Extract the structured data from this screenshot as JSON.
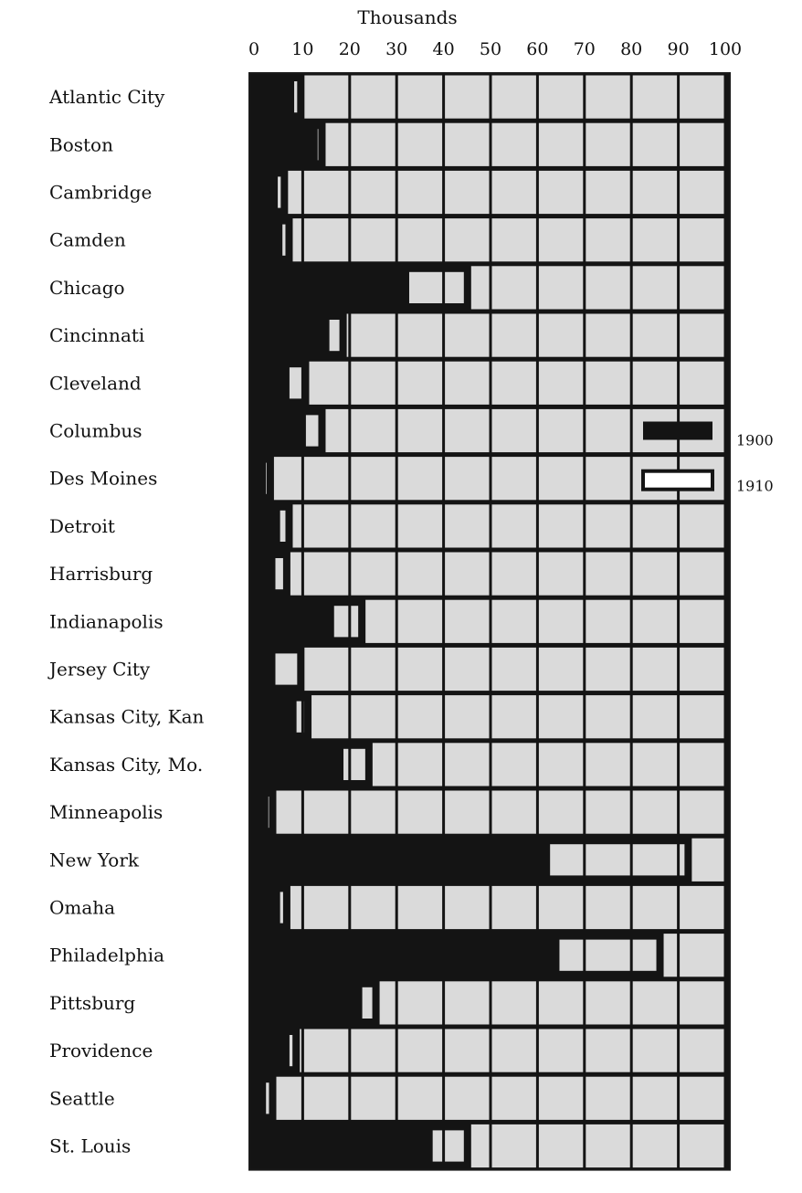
{
  "chart_data": {
    "type": "bar",
    "title": "Thousands",
    "x_ticks": [
      "0",
      "10",
      "20",
      "30",
      "40",
      "50",
      "60",
      "70",
      "80",
      "90",
      "100"
    ],
    "xlim": [
      0,
      100
    ],
    "grid": true,
    "legend_position": "right",
    "categories": [
      "Atlantic City",
      "Boston",
      "Cambridge",
      "Camden",
      "Chicago",
      "Cincinnati",
      "Cleveland",
      "Columbus",
      "Des Moines",
      "Detroit",
      "Harrisburg",
      "Indianapolis",
      "Jersey City",
      "Kansas City, Kan",
      "Kansas City, Mo.",
      "Minneapolis",
      "New York",
      "Omaha",
      "Philadelphia",
      "Pittsburg",
      "Providence",
      "Seattle",
      "St. Louis"
    ],
    "series": [
      {
        "name": "1900",
        "style": "solid",
        "values": [
          7.5,
          12.5,
          4,
          5,
          32,
          15,
          6.5,
          10,
          1.5,
          4.5,
          3.5,
          16,
          3.5,
          8,
          18,
          2,
          62,
          4.5,
          64,
          22,
          6.5,
          1.5,
          37
        ]
      },
      {
        "name": "1910",
        "style": "outline",
        "values": [
          9.5,
          14,
          6,
          7,
          45,
          18.5,
          10.5,
          14,
          3,
          7,
          6.5,
          22.5,
          9.5,
          11,
          24,
          3.5,
          92,
          6.5,
          86,
          25.5,
          8.5,
          3.5,
          45
        ]
      }
    ],
    "colors": {
      "bar": "#141414",
      "cell": "#dadada",
      "grid": "#1a1a1a"
    }
  }
}
